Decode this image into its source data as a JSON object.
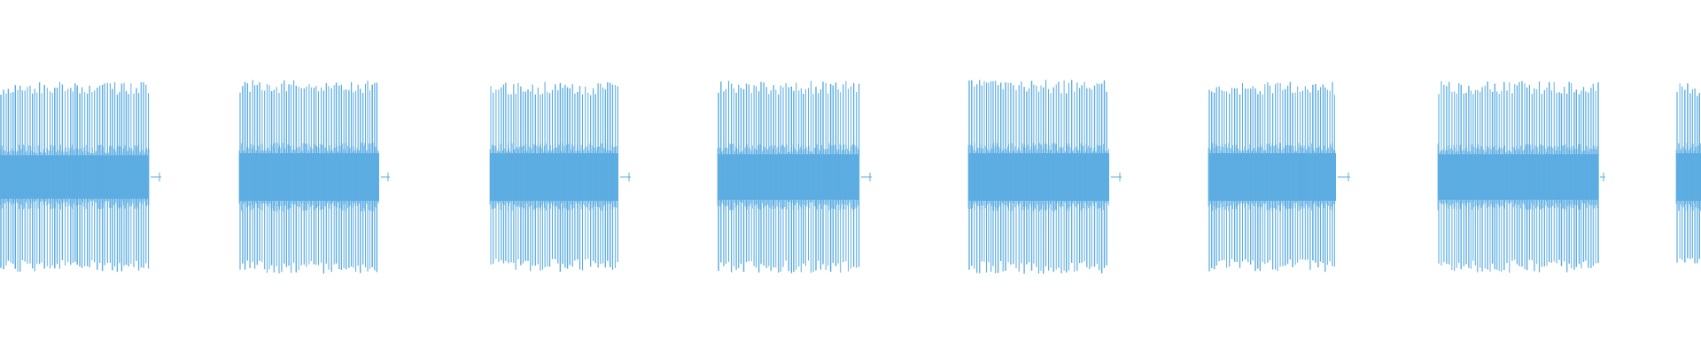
{
  "waveform": {
    "color": "#5dade2",
    "background": "#ffffff",
    "burst_count": 8,
    "bursts": [
      {
        "index": 1,
        "peak_level": 0.96,
        "core_level": 0.22
      },
      {
        "index": 2,
        "peak_level": 0.98,
        "core_level": 0.24
      },
      {
        "index": 3,
        "peak_level": 0.96,
        "core_level": 0.24
      },
      {
        "index": 4,
        "peak_level": 0.97,
        "core_level": 0.23
      },
      {
        "index": 5,
        "peak_level": 0.98,
        "core_level": 0.24
      },
      {
        "index": 6,
        "peak_level": 0.96,
        "core_level": 0.24
      },
      {
        "index": 7,
        "peak_level": 0.97,
        "core_level": 0.23
      },
      {
        "index": 8,
        "peak_level": 0.95,
        "core_level": 0.24
      }
    ]
  }
}
